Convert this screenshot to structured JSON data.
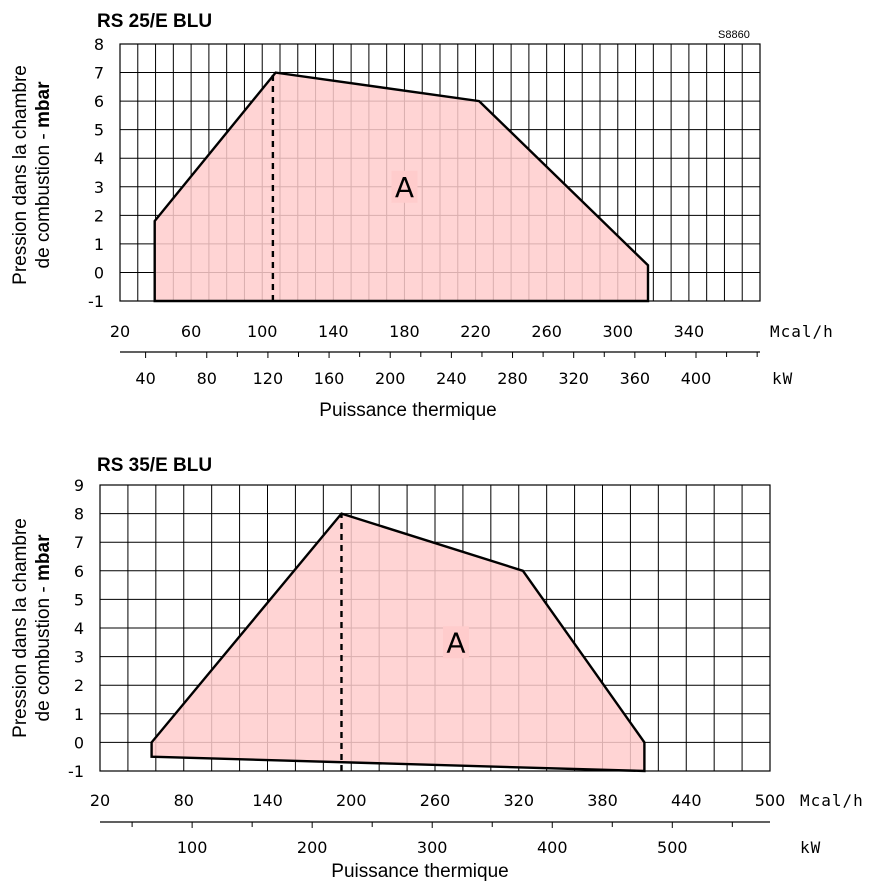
{
  "chart_data": [
    {
      "type": "area",
      "title": "RS 25/E BLU",
      "reference": "S8860",
      "ylabel_line1": "Pression dans la chambre",
      "ylabel_line2_normal": "de combustion - ",
      "ylabel_line2_bold": "mbar",
      "xlabel": "Puissance thermique",
      "x_unit_primary": "Mcal/h",
      "x_unit_secondary": "kW",
      "xlim": [
        20,
        380
      ],
      "ylim": [
        -1,
        8
      ],
      "x_ticks_primary": [
        20,
        60,
        100,
        140,
        180,
        220,
        260,
        300,
        340
      ],
      "x_ticks_secondary": [
        40,
        80,
        120,
        160,
        200,
        240,
        280,
        320,
        360,
        400
      ],
      "y_ticks": [
        -1,
        0,
        1,
        2,
        3,
        4,
        5,
        6,
        7,
        8
      ],
      "grid": true,
      "grid_step_mcal": 10,
      "kw_minor_step": 20,
      "region_label": "A",
      "region_label_pos": [
        180,
        3
      ],
      "fill_color": "#ffcccc",
      "line_color": "#000000",
      "polygon": [
        [
          39.5,
          -1
        ],
        [
          39.5,
          1.8
        ],
        [
          107.5,
          7
        ],
        [
          222,
          6
        ],
        [
          317,
          0.25
        ],
        [
          317,
          -1
        ]
      ],
      "dashed_line": {
        "x": 106,
        "y": [
          -1,
          7
        ]
      }
    },
    {
      "type": "area",
      "title": "RS 35/E BLU",
      "ylabel_line1": "Pression dans la chambre",
      "ylabel_line2_normal": "de combustion - ",
      "ylabel_line2_bold": "mbar",
      "xlabel": "Puissance thermique",
      "x_unit_primary": "Mcal/h",
      "x_unit_secondary": "kW",
      "xlim": [
        20,
        500
      ],
      "ylim": [
        -1,
        9
      ],
      "x_ticks_primary": [
        20,
        80,
        140,
        200,
        260,
        320,
        380,
        440,
        500
      ],
      "x_ticks_secondary": [
        100,
        200,
        300,
        400,
        500
      ],
      "y_ticks": [
        -1,
        0,
        1,
        2,
        3,
        4,
        5,
        6,
        7,
        8,
        9
      ],
      "grid": true,
      "grid_step_mcal": 20,
      "kw_minor_step": 50,
      "region_label": "A",
      "region_label_pos": [
        275,
        3.5
      ],
      "fill_color": "#ffcccc",
      "line_color": "#000000",
      "polygon": [
        [
          57,
          0
        ],
        [
          57,
          -0.5
        ],
        [
          410,
          -1
        ],
        [
          410,
          0
        ],
        [
          323,
          6
        ],
        [
          193,
          8
        ]
      ],
      "dashed_line": {
        "x": 193,
        "y": [
          -1,
          8
        ]
      }
    }
  ]
}
